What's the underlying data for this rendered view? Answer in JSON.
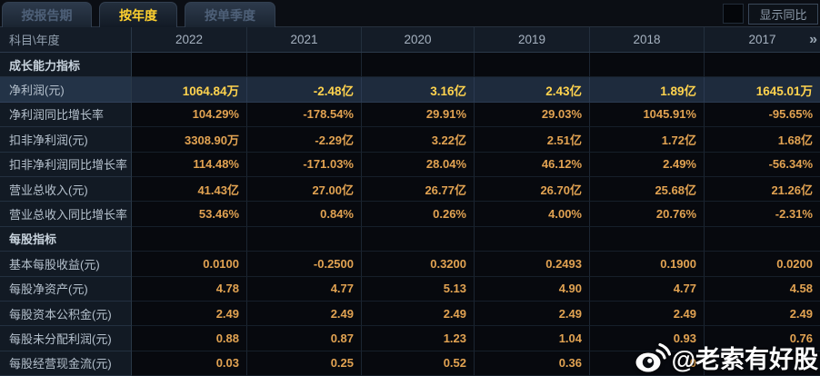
{
  "tabs": [
    {
      "label": "按报告期",
      "active": false
    },
    {
      "label": "按年度",
      "active": true
    },
    {
      "label": "按单季度",
      "active": false
    }
  ],
  "controls": {
    "sync_label": "显示同比",
    "checkbox_checked": false
  },
  "table": {
    "corner": "科目\\年度",
    "years": [
      "2022",
      "2021",
      "2020",
      "2019",
      "2018",
      "2017"
    ],
    "more_icon": "»",
    "rows": [
      {
        "type": "section",
        "label": "成长能力指标"
      },
      {
        "type": "data",
        "highlight": true,
        "label": "净利润(元)",
        "values": [
          "1064.84万",
          "-2.48亿",
          "3.16亿",
          "2.43亿",
          "1.89亿",
          "1645.01万"
        ]
      },
      {
        "type": "data",
        "highlight": false,
        "label": "净利润同比增长率",
        "values": [
          "104.29%",
          "-178.54%",
          "29.91%",
          "29.03%",
          "1045.91%",
          "-95.65%"
        ]
      },
      {
        "type": "data",
        "highlight": false,
        "label": "扣非净利润(元)",
        "values": [
          "3308.90万",
          "-2.29亿",
          "3.22亿",
          "2.51亿",
          "1.72亿",
          "1.68亿"
        ]
      },
      {
        "type": "data",
        "highlight": false,
        "label": "扣非净利润同比增长率",
        "values": [
          "114.48%",
          "-171.03%",
          "28.04%",
          "46.12%",
          "2.49%",
          "-56.34%"
        ]
      },
      {
        "type": "data",
        "highlight": false,
        "label": "营业总收入(元)",
        "values": [
          "41.43亿",
          "27.00亿",
          "26.77亿",
          "26.70亿",
          "25.68亿",
          "21.26亿"
        ]
      },
      {
        "type": "data",
        "highlight": false,
        "label": "营业总收入同比增长率",
        "values": [
          "53.46%",
          "0.84%",
          "0.26%",
          "4.00%",
          "20.76%",
          "-2.31%"
        ]
      },
      {
        "type": "section",
        "label": "每股指标"
      },
      {
        "type": "data",
        "highlight": false,
        "label": "基本每股收益(元)",
        "values": [
          "0.0100",
          "-0.2500",
          "0.3200",
          "0.2493",
          "0.1900",
          "0.0200"
        ]
      },
      {
        "type": "data",
        "highlight": false,
        "label": "每股净资产(元)",
        "values": [
          "4.78",
          "4.77",
          "5.13",
          "4.90",
          "4.77",
          "4.58"
        ]
      },
      {
        "type": "data",
        "highlight": false,
        "label": "每股资本公积金(元)",
        "values": [
          "2.49",
          "2.49",
          "2.49",
          "2.49",
          "2.49",
          "2.49"
        ]
      },
      {
        "type": "data",
        "highlight": false,
        "label": "每股未分配利润(元)",
        "values": [
          "0.88",
          "0.87",
          "1.23",
          "1.04",
          "0.93",
          "0.76"
        ]
      },
      {
        "type": "data",
        "highlight": false,
        "label": "每股经营现金流(元)",
        "values": [
          "0.03",
          "0.25",
          "0.52",
          "0.36",
          "0",
          ""
        ]
      }
    ]
  },
  "watermark": {
    "text": "@老索有好股",
    "icon": "weibo-logo"
  },
  "colors": {
    "accent_yellow": "#ffd12f",
    "value_orange": "#e2a352",
    "highlight_value": "#ffd34e",
    "highlight_row_bg": "#1e2b3d",
    "label_col_bg": "#121a24",
    "header_bg": "#141c27",
    "page_bg": "#0a0d12"
  }
}
